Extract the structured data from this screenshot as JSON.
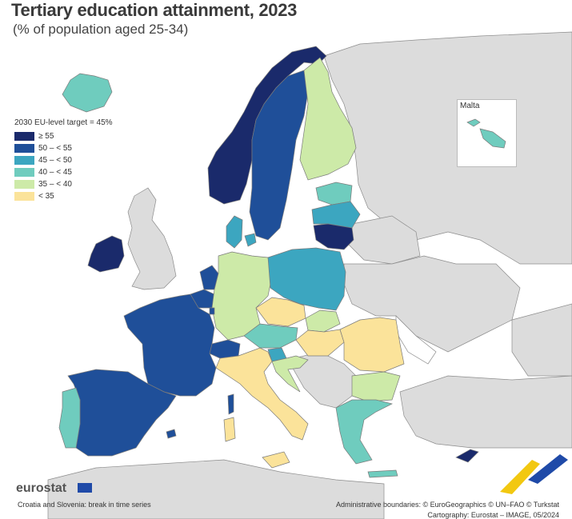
{
  "header": {
    "title": "Tertiary education attainment, 2023",
    "subtitle": "(% of population aged 25-34)"
  },
  "legend": {
    "title": "2030 EU-level target = 45%",
    "classes": [
      {
        "label": "≥ 55",
        "color": "#1a2a6b"
      },
      {
        "label": "50 – < 55",
        "color": "#1f4f99"
      },
      {
        "label": "45 – < 50",
        "color": "#3ca6c0"
      },
      {
        "label": "40 – < 45",
        "color": "#6fccbe"
      },
      {
        "label": "35 – < 40",
        "color": "#cdeaa8"
      },
      {
        "label": "< 35",
        "color": "#fbe39a"
      }
    ]
  },
  "inset": {
    "label": "Malta"
  },
  "footer": {
    "logo": "eurostat",
    "note": "Croatia and Slovenia: break in time series",
    "credit_boundaries": "Administrative boundaries: © EuroGeographics © UN–FAO © Turkstat",
    "credit_cartography": "Cartography: Eurostat – IMAGE, 05/2024"
  },
  "colors": {
    "non_eu": "#dcdcdc",
    "no_data": "#ffffff",
    "sea": "#ffffff",
    "border": "#7a7a7a"
  },
  "countries": [
    {
      "name": "Norway",
      "class": "≥ 55"
    },
    {
      "name": "Ireland",
      "class": "≥ 55"
    },
    {
      "name": "Lithuania",
      "class": "≥ 55"
    },
    {
      "name": "Cyprus",
      "class": "≥ 55"
    },
    {
      "name": "Sweden",
      "class": "50 – < 55"
    },
    {
      "name": "France",
      "class": "50 – < 55"
    },
    {
      "name": "Spain",
      "class": "50 – < 55"
    },
    {
      "name": "Netherlands",
      "class": "50 – < 55"
    },
    {
      "name": "Belgium",
      "class": "50 – < 55"
    },
    {
      "name": "Luxembourg",
      "class": "50 – < 55"
    },
    {
      "name": "Switzerland",
      "class": "50 – < 55"
    },
    {
      "name": "Denmark",
      "class": "45 – < 50"
    },
    {
      "name": "Poland",
      "class": "45 – < 50"
    },
    {
      "name": "Latvia",
      "class": "45 – < 50"
    },
    {
      "name": "Slovenia",
      "class": "45 – < 50"
    },
    {
      "name": "Iceland",
      "class": "40 – < 45"
    },
    {
      "name": "Estonia",
      "class": "40 – < 45"
    },
    {
      "name": "Portugal",
      "class": "40 – < 45"
    },
    {
      "name": "Austria",
      "class": "40 – < 45"
    },
    {
      "name": "Greece",
      "class": "40 – < 45"
    },
    {
      "name": "Malta",
      "class": "40 – < 45"
    },
    {
      "name": "Finland",
      "class": "35 – < 40"
    },
    {
      "name": "Germany",
      "class": "35 – < 40"
    },
    {
      "name": "Slovakia",
      "class": "35 – < 40"
    },
    {
      "name": "Bulgaria",
      "class": "35 – < 40"
    },
    {
      "name": "Croatia",
      "class": "35 – < 40"
    },
    {
      "name": "Italy",
      "class": "< 35"
    },
    {
      "name": "Czechia",
      "class": "< 35"
    },
    {
      "name": "Hungary",
      "class": "< 35"
    },
    {
      "name": "Romania",
      "class": "< 35"
    }
  ]
}
